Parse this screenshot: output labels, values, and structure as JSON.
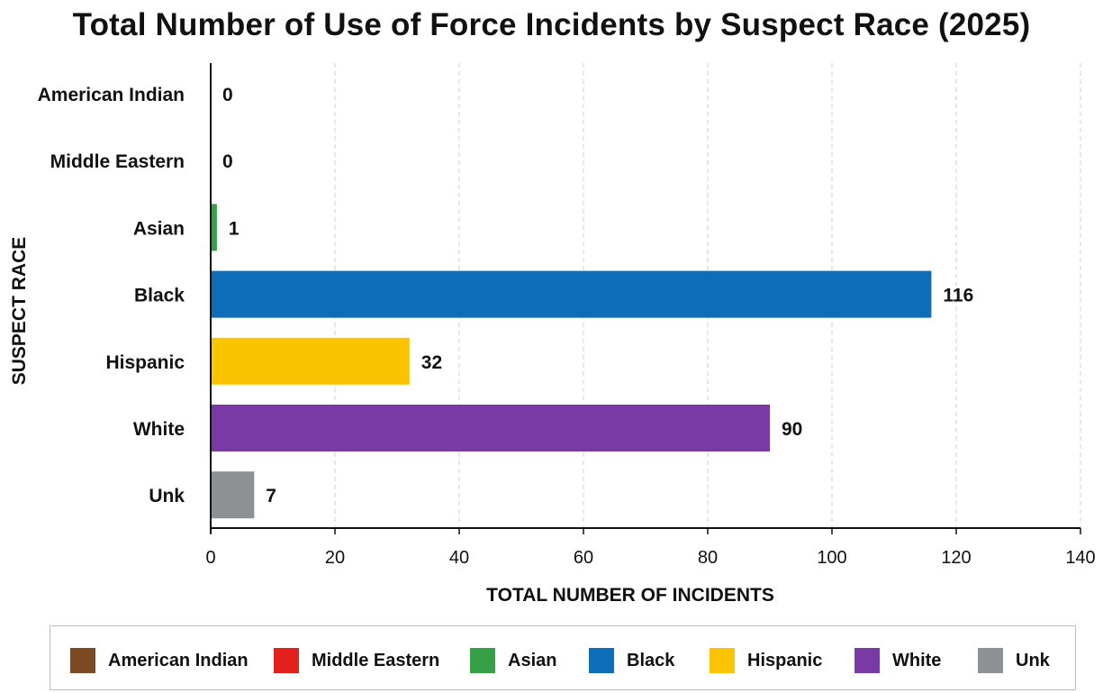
{
  "chart_data": {
    "type": "bar",
    "orientation": "horizontal",
    "title": "Total Number of Use of Force Incidents by Suspect Race (2025)",
    "xlabel": "TOTAL NUMBER OF INCIDENTS",
    "ylabel": "SUSPECT RACE",
    "categories": [
      "American Indian",
      "Middle Eastern",
      "Asian",
      "Black",
      "Hispanic",
      "White",
      "Unk"
    ],
    "values": [
      0,
      0,
      1,
      116,
      32,
      90,
      7
    ],
    "colors": [
      "#7b4a23",
      "#e3201b",
      "#35a046",
      "#0d6db8",
      "#fbc400",
      "#7a3aa6",
      "#8e9194"
    ],
    "xlim": [
      0,
      140
    ],
    "xticks": [
      0,
      20,
      40,
      60,
      80,
      100,
      120,
      140
    ],
    "grid": true,
    "legend": {
      "position": "bottom",
      "entries": [
        "American Indian",
        "Middle Eastern",
        "Asian",
        "Black",
        "Hispanic",
        "White",
        "Unk"
      ]
    }
  }
}
